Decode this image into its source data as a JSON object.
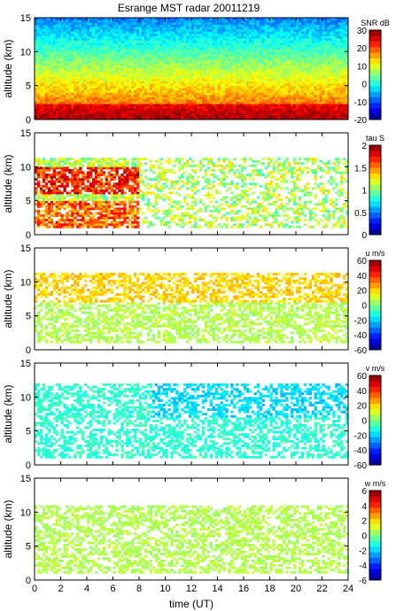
{
  "figure": {
    "title": "Esrange MST radar 20011219",
    "xlabel": "time (UT)"
  },
  "chart_data": [
    {
      "type": "heatmap",
      "title": "Esrange MST radar 20011219",
      "ylabel": "altitude (km)",
      "xlabel": "",
      "xlim": [
        0,
        24
      ],
      "ylim": [
        0,
        15
      ],
      "x_ticks": [
        "0",
        "2",
        "4",
        "6",
        "8",
        "10",
        "12",
        "14",
        "16",
        "18",
        "20",
        "22",
        "24"
      ],
      "y_ticks": [
        "0",
        "5",
        "10",
        "15"
      ],
      "colorbar": {
        "label": "SNR dB",
        "range": [
          -20,
          30
        ],
        "ticks": [
          "30",
          "20",
          "10",
          "0",
          "-10",
          "-20"
        ]
      },
      "field": "snr",
      "profile": [
        {
          "altitude": 1,
          "value": 20
        },
        {
          "altitude": 2,
          "value": 18
        },
        {
          "altitude": 3,
          "value": 12
        },
        {
          "altitude": 5,
          "value": 8
        },
        {
          "altitude": 7,
          "value": 6
        },
        {
          "altitude": 9,
          "value": 3
        },
        {
          "altitude": 11,
          "value": 0
        },
        {
          "altitude": 13,
          "value": -5
        },
        {
          "altitude": 15,
          "value": -8
        }
      ]
    },
    {
      "type": "heatmap",
      "ylabel": "altitude (km)",
      "xlim": [
        0,
        24
      ],
      "ylim": [
        0,
        15
      ],
      "x_ticks": [
        "0",
        "2",
        "4",
        "6",
        "8",
        "10",
        "12",
        "14",
        "16",
        "18",
        "20",
        "22",
        "24"
      ],
      "y_ticks": [
        "0",
        "5",
        "10",
        "15"
      ],
      "colorbar": {
        "label": "tau S",
        "range": [
          0,
          2
        ],
        "ticks": [
          "2",
          "1.5",
          "1",
          "0.5",
          "0"
        ]
      },
      "field": "tau"
    },
    {
      "type": "heatmap",
      "ylabel": "altitude (km)",
      "xlim": [
        0,
        24
      ],
      "ylim": [
        0,
        15
      ],
      "x_ticks": [
        "0",
        "2",
        "4",
        "6",
        "8",
        "10",
        "12",
        "14",
        "16",
        "18",
        "20",
        "22",
        "24"
      ],
      "y_ticks": [
        "0",
        "5",
        "10",
        "15"
      ],
      "colorbar": {
        "label": "u m/s",
        "range": [
          -60,
          60
        ],
        "ticks": [
          "60",
          "40",
          "20",
          "0",
          "-20",
          "-40",
          "-60"
        ]
      },
      "field": "u"
    },
    {
      "type": "heatmap",
      "ylabel": "altitude (km)",
      "xlim": [
        0,
        24
      ],
      "ylim": [
        0,
        15
      ],
      "x_ticks": [
        "0",
        "2",
        "4",
        "6",
        "8",
        "10",
        "12",
        "14",
        "16",
        "18",
        "20",
        "22",
        "24"
      ],
      "y_ticks": [
        "0",
        "5",
        "10",
        "15"
      ],
      "colorbar": {
        "label": "v m/s",
        "range": [
          -60,
          60
        ],
        "ticks": [
          "60",
          "40",
          "20",
          "0",
          "-20",
          "-40",
          "-60"
        ]
      },
      "field": "v"
    },
    {
      "type": "heatmap",
      "ylabel": "altitude (km)",
      "xlabel": "time (UT)",
      "xlim": [
        0,
        24
      ],
      "ylim": [
        0,
        15
      ],
      "x_ticks": [
        "0",
        "2",
        "4",
        "6",
        "8",
        "10",
        "12",
        "14",
        "16",
        "18",
        "20",
        "22",
        "24"
      ],
      "y_ticks": [
        "0",
        "5",
        "10",
        "15"
      ],
      "colorbar": {
        "label": "w m/s",
        "range": [
          -6,
          6
        ],
        "ticks": [
          "6",
          "4",
          "2",
          "0",
          "-2",
          "-4",
          "-6"
        ]
      },
      "field": "w"
    }
  ],
  "colors": {
    "background": "#ffffff",
    "axis": "#000000",
    "colormap": "jet"
  }
}
